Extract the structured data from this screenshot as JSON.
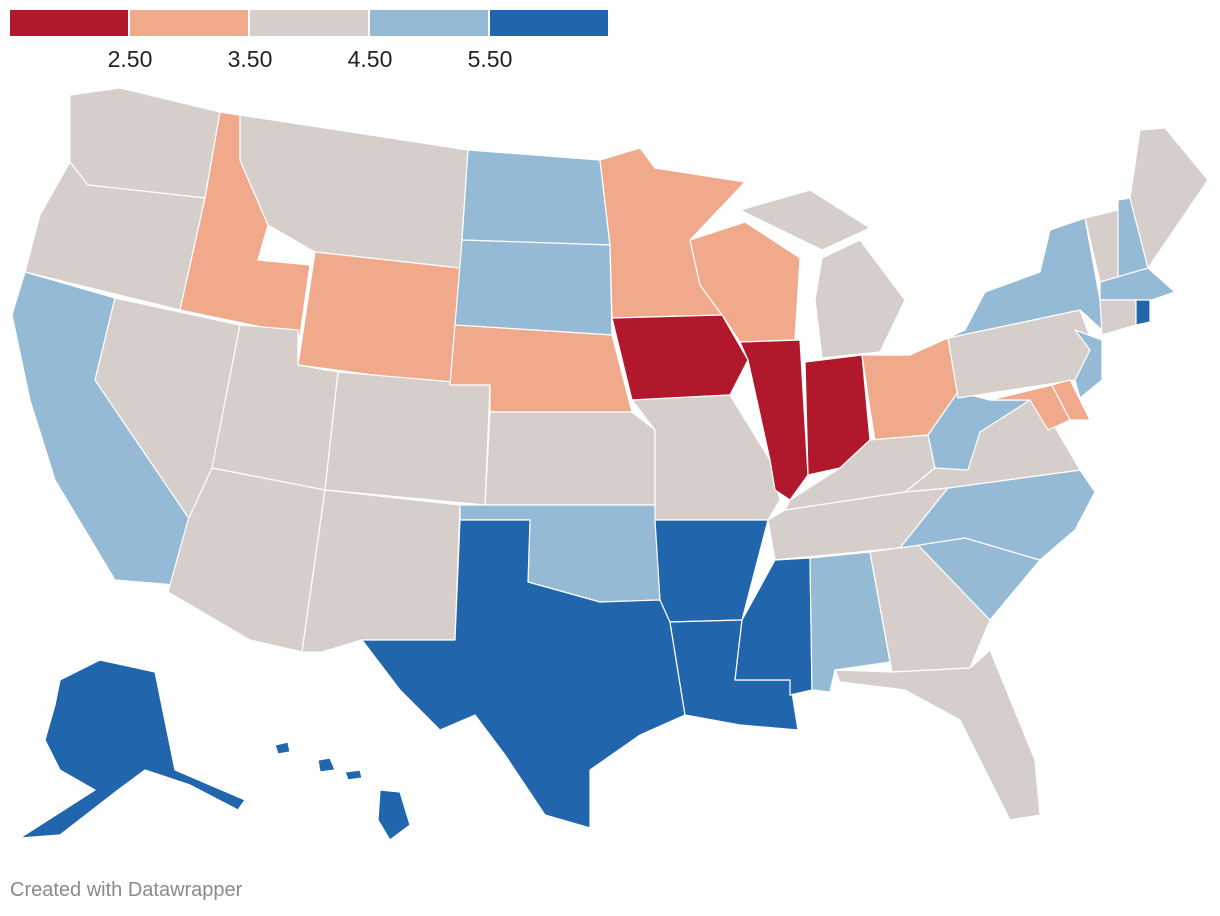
{
  "legend": {
    "bins": [
      {
        "name": "lt-2.5",
        "color": "#b2182b"
      },
      {
        "name": "2.5-3.5",
        "color": "#f0a98a"
      },
      {
        "name": "3.5-4.5",
        "color": "#d6ceca"
      },
      {
        "name": "4.5-5.5",
        "color": "#94bad5"
      },
      {
        "name": "gt-5.5",
        "color": "#2166ac"
      }
    ],
    "ticks": [
      "2.50",
      "3.50",
      "4.50",
      "5.50"
    ]
  },
  "credit": "Created with Datawrapper",
  "chart_data": {
    "type": "choropleth-map",
    "region": "United States",
    "bins": [
      {
        "range": "< 2.50",
        "color": "#b2182b",
        "states": [
          "Iowa",
          "Illinois",
          "Indiana"
        ]
      },
      {
        "range": "2.50 – 3.50",
        "color": "#f0a98a",
        "states": [
          "Idaho",
          "Wyoming",
          "Nebraska",
          "Minnesota",
          "Wisconsin",
          "Ohio",
          "Maryland",
          "Delaware"
        ]
      },
      {
        "range": "3.50 – 4.50",
        "color": "#d6ceca",
        "states": [
          "Washington",
          "Oregon",
          "Montana",
          "Nevada",
          "Utah",
          "Colorado",
          "Arizona",
          "New Mexico",
          "Kansas",
          "Missouri",
          "Michigan",
          "Kentucky",
          "Tennessee",
          "Virginia",
          "Georgia",
          "Florida",
          "Pennsylvania",
          "Vermont",
          "Maine",
          "Connecticut"
        ]
      },
      {
        "range": "4.50 – 5.50",
        "color": "#94bad5",
        "states": [
          "California",
          "North Dakota",
          "South Dakota",
          "Oklahoma",
          "Alabama",
          "South Carolina",
          "North Carolina",
          "West Virginia",
          "New York",
          "New Jersey",
          "New Hampshire",
          "Massachusetts"
        ]
      },
      {
        "range": "> 5.50",
        "color": "#2166ac",
        "states": [
          "Texas",
          "Arkansas",
          "Louisiana",
          "Mississippi",
          "Alaska",
          "Hawaii",
          "Rhode Island"
        ]
      }
    ]
  }
}
